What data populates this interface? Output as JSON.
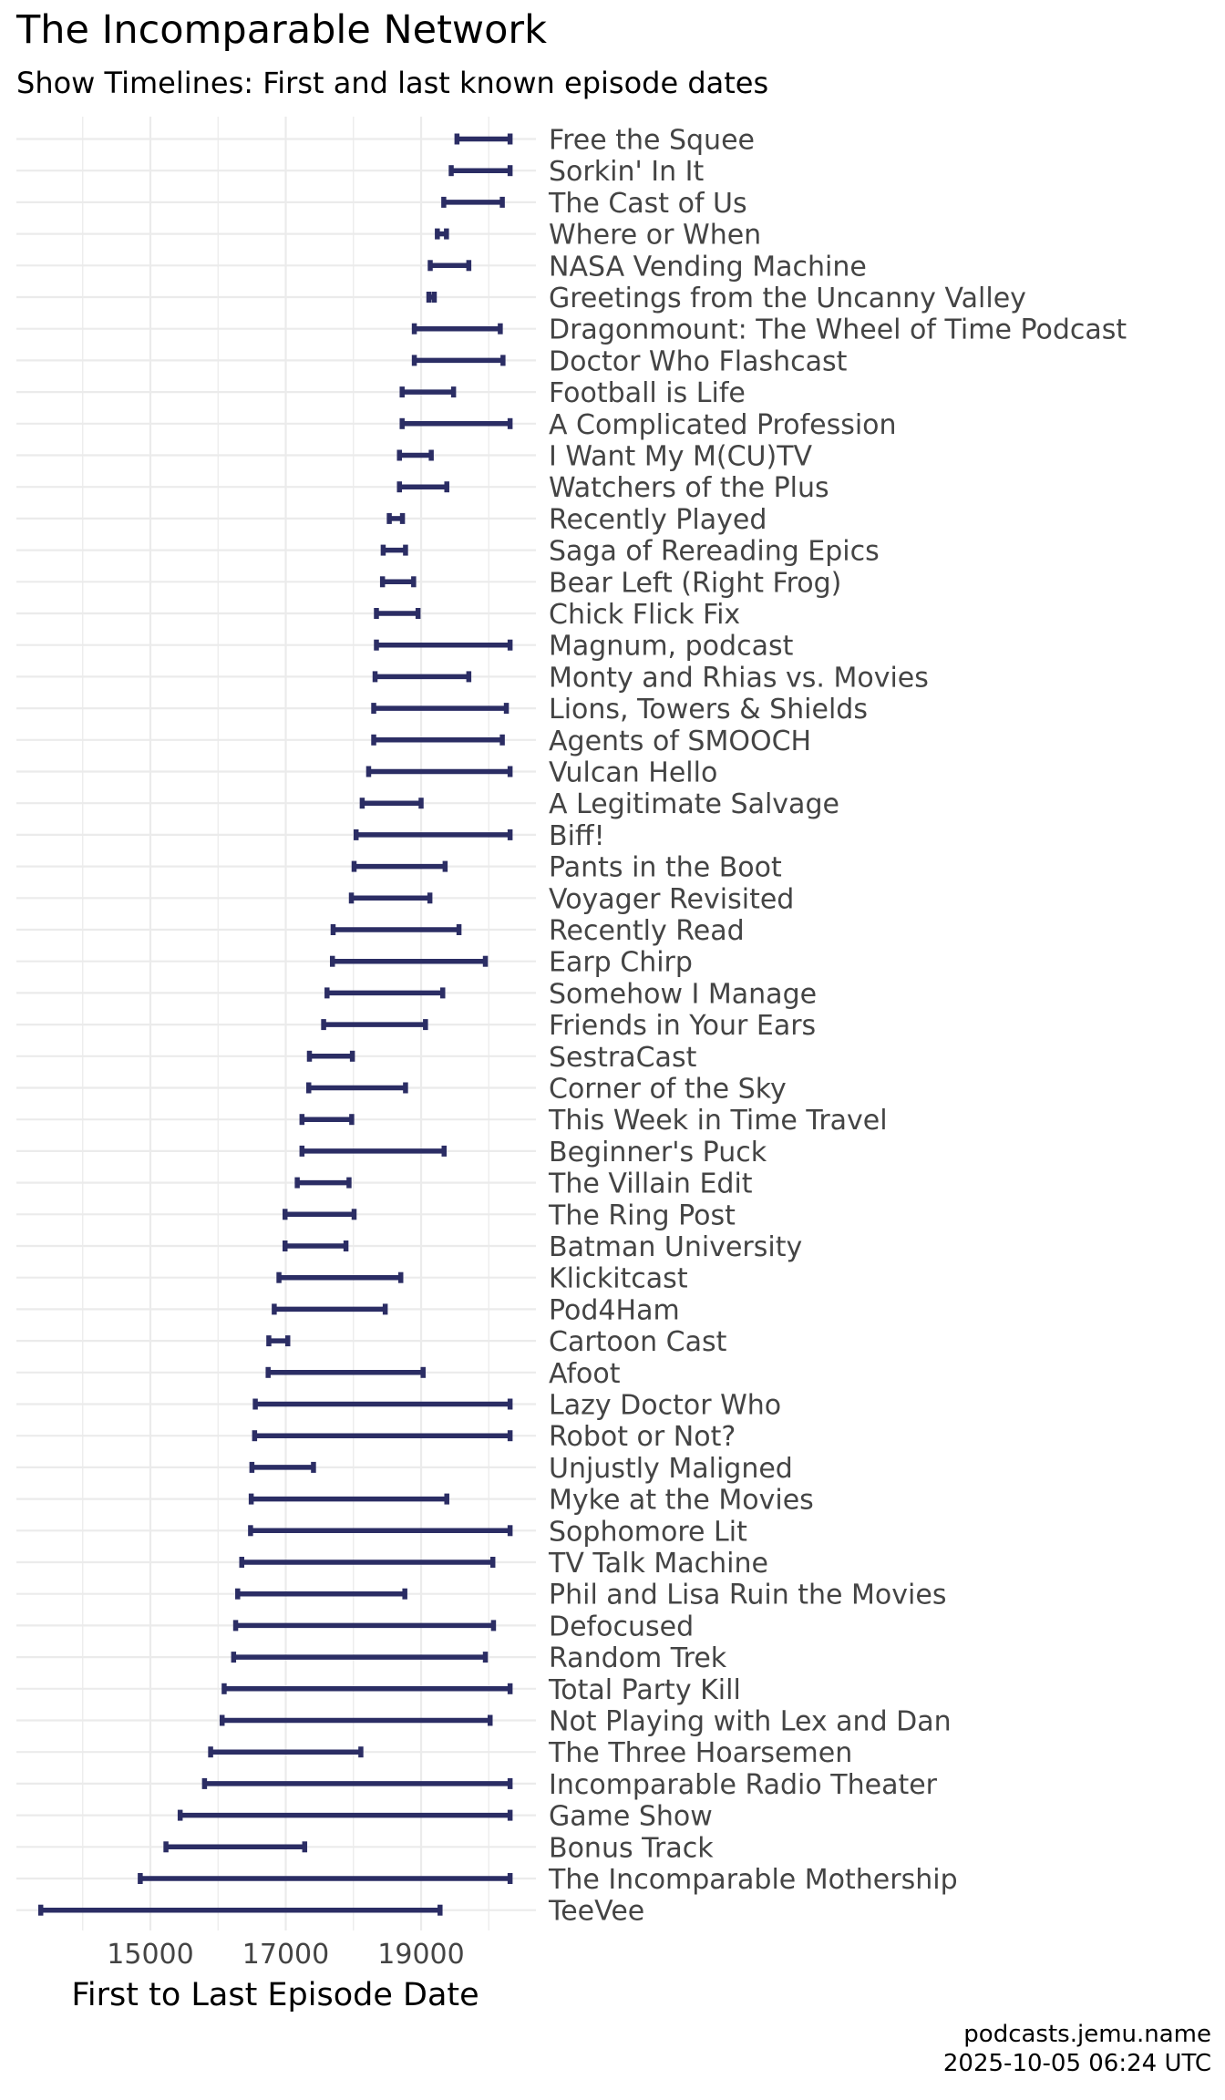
{
  "title": "The Incomparable Network",
  "subtitle": "Show Timelines: First and last known episode dates",
  "caption": {
    "line1": "podcasts.jemu.name",
    "line2": "2025-10-05 06:24 UTC"
  },
  "colors": {
    "bar": "#2b2d64",
    "grid": "#ebebeb",
    "text": "#444444"
  },
  "chart_data": {
    "type": "range",
    "xlabel": "First to Last Episode Date",
    "ylabel": "",
    "x_ticks": [
      15000,
      17000,
      19000
    ],
    "xlim": [
      13600,
      20200
    ],
    "grid": true,
    "shows": [
      {
        "name": "Free the Squee",
        "first": 19530,
        "last": 20315
      },
      {
        "name": "Sorkin' In It",
        "first": 19445,
        "last": 20315
      },
      {
        "name": "The Cast of Us",
        "first": 19335,
        "last": 20200
      },
      {
        "name": "Where or When",
        "first": 19240,
        "last": 19375
      },
      {
        "name": "NASA Vending Machine",
        "first": 19135,
        "last": 19705
      },
      {
        "name": "Greetings from the Uncanny Valley",
        "first": 19115,
        "last": 19195
      },
      {
        "name": "Dragonmount: The Wheel of Time Podcast",
        "first": 18900,
        "last": 20170
      },
      {
        "name": "Doctor Who Flashcast",
        "first": 18900,
        "last": 20210
      },
      {
        "name": "Football is Life",
        "first": 18720,
        "last": 19480
      },
      {
        "name": "A Complicated Profession",
        "first": 18720,
        "last": 20315
      },
      {
        "name": "I Want My M(CU)TV",
        "first": 18680,
        "last": 19150
      },
      {
        "name": "Watchers of the Plus",
        "first": 18680,
        "last": 19380
      },
      {
        "name": "Recently Played",
        "first": 18530,
        "last": 18725
      },
      {
        "name": "Saga of Rereading Epics",
        "first": 18440,
        "last": 18770
      },
      {
        "name": "Bear Left (Right Frog)",
        "first": 18430,
        "last": 18890
      },
      {
        "name": "Chick Flick Fix",
        "first": 18340,
        "last": 18955
      },
      {
        "name": "Magnum, podcast",
        "first": 18340,
        "last": 20315
      },
      {
        "name": "Monty and Rhias vs. Movies",
        "first": 18320,
        "last": 19705
      },
      {
        "name": "Lions, Towers & Shields",
        "first": 18300,
        "last": 20260
      },
      {
        "name": "Agents of SMOOCH",
        "first": 18300,
        "last": 20200
      },
      {
        "name": "Vulcan Hello",
        "first": 18225,
        "last": 20315
      },
      {
        "name": "A Legitimate Salvage",
        "first": 18130,
        "last": 19000
      },
      {
        "name": "Biff!",
        "first": 18040,
        "last": 20315
      },
      {
        "name": "Pants in the Boot",
        "first": 18010,
        "last": 19355
      },
      {
        "name": "Voyager Revisited",
        "first": 17970,
        "last": 19130
      },
      {
        "name": "Recently Read",
        "first": 17700,
        "last": 19560
      },
      {
        "name": "Earp Chirp",
        "first": 17690,
        "last": 19950
      },
      {
        "name": "Somehow I Manage",
        "first": 17610,
        "last": 19320
      },
      {
        "name": "Friends in Your Ears",
        "first": 17560,
        "last": 19065
      },
      {
        "name": "SestraCast",
        "first": 17350,
        "last": 17985
      },
      {
        "name": "Corner of the Sky",
        "first": 17340,
        "last": 18770
      },
      {
        "name": "This Week in Time Travel",
        "first": 17240,
        "last": 17975
      },
      {
        "name": "Beginner's Puck",
        "first": 17240,
        "last": 19340
      },
      {
        "name": "The Villain Edit",
        "first": 17170,
        "last": 17935
      },
      {
        "name": "The Ring Post",
        "first": 16990,
        "last": 18010
      },
      {
        "name": "Batman University",
        "first": 16990,
        "last": 17890
      },
      {
        "name": "Klickitcast",
        "first": 16900,
        "last": 18700
      },
      {
        "name": "Pod4Ham",
        "first": 16830,
        "last": 18470
      },
      {
        "name": "Cartoon Cast",
        "first": 16750,
        "last": 17030
      },
      {
        "name": "Afoot",
        "first": 16740,
        "last": 19030
      },
      {
        "name": "Lazy Doctor Who",
        "first": 16550,
        "last": 20315
      },
      {
        "name": "Robot or Not?",
        "first": 16540,
        "last": 20315
      },
      {
        "name": "Unjustly Maligned",
        "first": 16500,
        "last": 17410
      },
      {
        "name": "Myke at the Movies",
        "first": 16490,
        "last": 19380
      },
      {
        "name": "Sophomore Lit",
        "first": 16480,
        "last": 20315
      },
      {
        "name": "TV Talk Machine",
        "first": 16350,
        "last": 20060
      },
      {
        "name": "Phil and Lisa Ruin the Movies",
        "first": 16290,
        "last": 18760
      },
      {
        "name": "Defocused",
        "first": 16260,
        "last": 20070
      },
      {
        "name": "Random Trek",
        "first": 16230,
        "last": 19950
      },
      {
        "name": "Total Party Kill",
        "first": 16090,
        "last": 20315
      },
      {
        "name": "Not Playing with Lex and Dan",
        "first": 16060,
        "last": 20020
      },
      {
        "name": "The Three Hoarsemen",
        "first": 15890,
        "last": 18110
      },
      {
        "name": "Incomparable Radio Theater",
        "first": 15800,
        "last": 20315
      },
      {
        "name": "Game Show",
        "first": 15440,
        "last": 20315
      },
      {
        "name": "Bonus Track",
        "first": 15230,
        "last": 17280
      },
      {
        "name": "The Incomparable Mothership",
        "first": 14850,
        "last": 20315
      },
      {
        "name": "TeeVee",
        "first": 13380,
        "last": 19280
      }
    ]
  }
}
